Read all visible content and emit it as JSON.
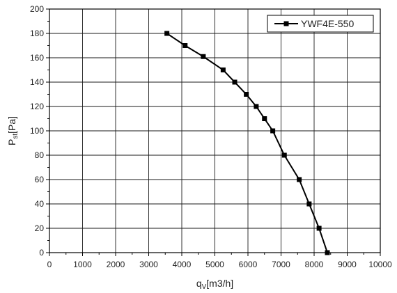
{
  "chart_data": {
    "type": "line",
    "xlabel": {
      "main": "q",
      "sub": "V",
      "unit": "[m3/h]"
    },
    "ylabel": {
      "main": "P",
      "sub": "st",
      "unit": "[Pa]"
    },
    "xlim": [
      0,
      10000
    ],
    "ylim": [
      0,
      200
    ],
    "x_ticks": [
      0,
      1000,
      2000,
      3000,
      4000,
      5000,
      6000,
      7000,
      8000,
      9000,
      10000
    ],
    "y_ticks": [
      0,
      20,
      40,
      60,
      80,
      100,
      120,
      140,
      160,
      180,
      200
    ],
    "grid": true,
    "legend_position": "top-right",
    "series": [
      {
        "name": "YWF4E-550",
        "color": "#000000",
        "marker": "square",
        "x": [
          3550,
          4100,
          4650,
          5250,
          5600,
          5950,
          6250,
          6500,
          6750,
          7100,
          7550,
          7850,
          8150,
          8400
        ],
        "y": [
          180,
          170,
          161,
          150,
          140,
          130,
          120,
          110,
          100,
          80,
          60,
          40,
          20,
          0
        ]
      }
    ]
  }
}
